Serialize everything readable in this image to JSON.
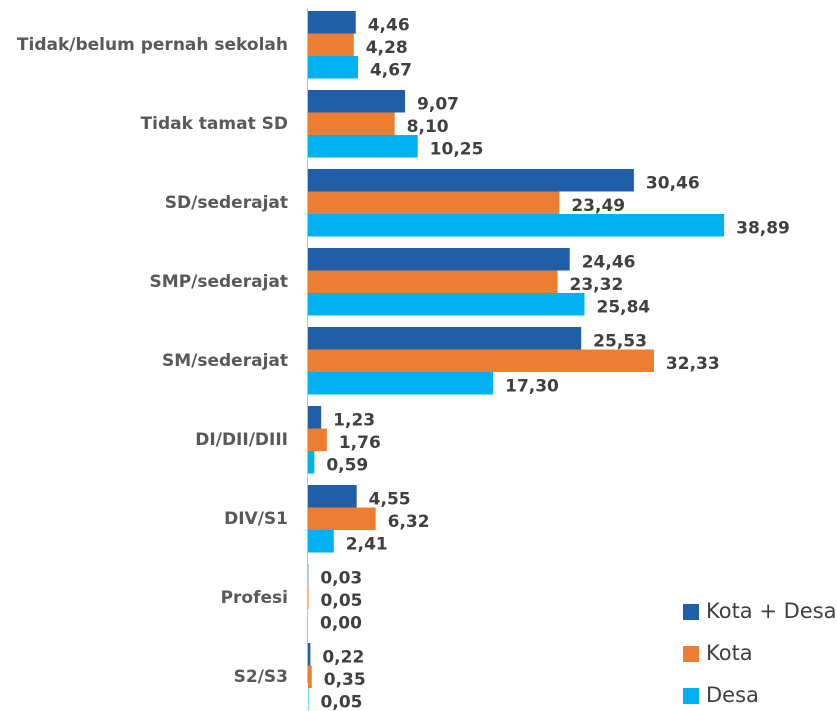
{
  "chart_data": {
    "type": "bar",
    "orientation": "horizontal",
    "categories": [
      "Tidak/belum pernah sekolah",
      "Tidak tamat SD",
      "SD/sederajat",
      "SMP/sederajat",
      "SM/sederajat",
      "DI/DII/DIII",
      "DIV/S1",
      "Profesi",
      "S2/S3"
    ],
    "series": [
      {
        "name": "Kota + Desa",
        "color": "#1f5fa8",
        "values": [
          4.46,
          9.07,
          30.46,
          24.46,
          25.53,
          1.23,
          4.55,
          0.03,
          0.22
        ],
        "value_labels": [
          "4,46",
          "9,07",
          "30,46",
          "24,46",
          "25,53",
          "1,23",
          "4,55",
          "0,03",
          "0,22"
        ]
      },
      {
        "name": "Kota",
        "color": "#ed7d31",
        "values": [
          4.28,
          8.1,
          23.49,
          23.32,
          32.33,
          1.76,
          6.32,
          0.05,
          0.35
        ],
        "value_labels": [
          "4,28",
          "8,10",
          "23,49",
          "23,32",
          "32,33",
          "1,76",
          "6,32",
          "0,05",
          "0,35"
        ]
      },
      {
        "name": "Desa",
        "color": "#00b0f0",
        "values": [
          4.67,
          10.25,
          38.89,
          25.84,
          17.3,
          0.59,
          2.41,
          0.0,
          0.05
        ],
        "value_labels": [
          "4,67",
          "10,25",
          "38,89",
          "25,84",
          "17,30",
          "0,59",
          "2,41",
          "0,00",
          "0,05"
        ]
      }
    ],
    "legend": "bottom-right"
  }
}
